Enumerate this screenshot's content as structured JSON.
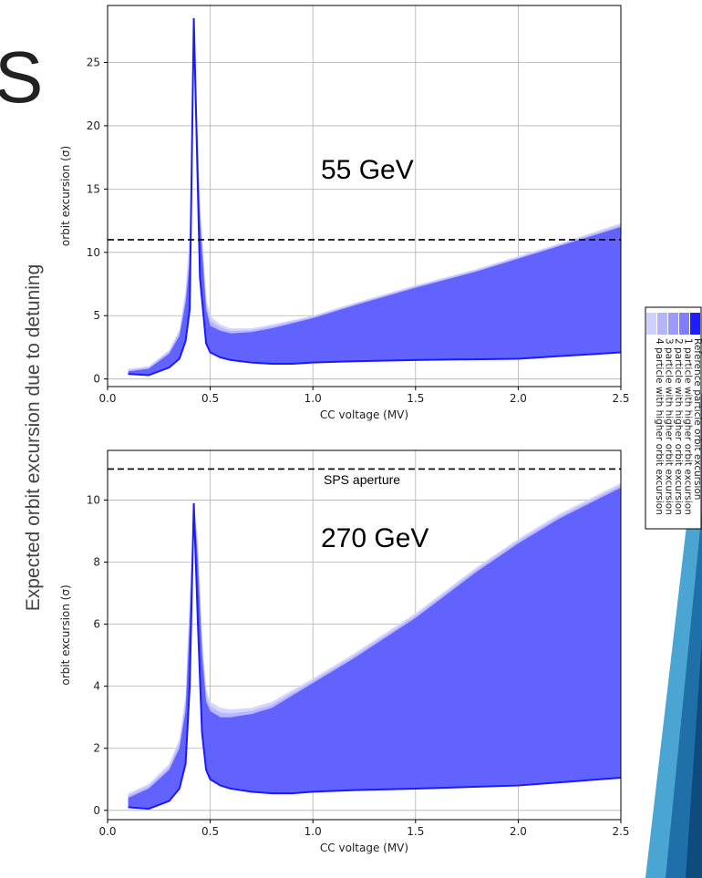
{
  "slide": {
    "title_fragment": "S",
    "side_label": "Expected orbit excursion due to detuning",
    "accent_colors": [
      "#1f6fa8",
      "#4aa5d2",
      "#7cc3e6",
      "#0f4c7e"
    ]
  },
  "legend": {
    "entries": [
      "Reference particle orbit excursion",
      "1 particle with higher orbit excursion",
      "2 particle with higher orbit excursion",
      "3 particle with higher orbit excursion",
      "4 particle with higher orbit excursion"
    ],
    "colors": [
      "#d0d0ff",
      "#b4b4ff",
      "#9a9aff",
      "#7e7eff",
      "#1d1dff"
    ]
  },
  "chart_data": [
    {
      "type": "area",
      "annotation": "55 GeV",
      "xlabel": "CC voltage (MV)",
      "ylabel": "orbit excursion (σ)",
      "xlim": [
        0.0,
        2.5
      ],
      "ylim": [
        -0.6,
        29.5
      ],
      "xticks": [
        "0.0",
        "0.5",
        "1.0",
        "1.5",
        "2.0",
        "2.5"
      ],
      "xtick_values": [
        0.0,
        0.5,
        1.0,
        1.5,
        2.0,
        2.5
      ],
      "yticks": [
        "0",
        "5",
        "10",
        "15",
        "20",
        "25"
      ],
      "ytick_values": [
        0,
        5,
        10,
        15,
        20,
        25
      ],
      "grid": true,
      "aperture_level": 11.0,
      "aperture_label": "",
      "series": [
        {
          "role": "upper envelope",
          "x": [
            0.1,
            0.2,
            0.3,
            0.35,
            0.38,
            0.4,
            0.42,
            0.45,
            0.48,
            0.5,
            0.55,
            0.6,
            0.7,
            0.8,
            1.0,
            1.2,
            1.5,
            1.8,
            2.0,
            2.2,
            2.5
          ],
          "values": [
            0.6,
            0.8,
            2.0,
            3.4,
            6.0,
            9.2,
            28.5,
            12.5,
            5.5,
            4.2,
            3.8,
            3.6,
            3.7,
            4.0,
            4.8,
            5.8,
            7.2,
            8.5,
            9.5,
            10.5,
            12.0
          ]
        },
        {
          "role": "reference particle",
          "x": [
            0.1,
            0.2,
            0.3,
            0.35,
            0.38,
            0.4,
            0.42,
            0.45,
            0.48,
            0.5,
            0.55,
            0.6,
            0.7,
            0.8,
            0.9,
            1.0,
            1.2,
            1.5,
            2.0,
            2.2,
            2.5
          ],
          "values": [
            0.4,
            0.3,
            0.9,
            1.6,
            3.0,
            5.5,
            28.5,
            8.0,
            2.8,
            2.1,
            1.7,
            1.5,
            1.3,
            1.2,
            1.2,
            1.3,
            1.4,
            1.5,
            1.6,
            1.8,
            2.1
          ]
        }
      ],
      "halo": {
        "x": [
          0.1,
          0.2,
          0.3,
          0.35,
          0.38,
          0.4,
          0.42,
          0.45,
          0.48,
          0.5,
          0.55,
          0.6,
          0.7,
          0.8,
          1.0,
          1.2,
          1.5,
          1.8,
          2.0,
          2.2,
          2.5
        ],
        "values": [
          0.8,
          1.0,
          2.3,
          3.9,
          7.0,
          11.5,
          28.5,
          14.0,
          6.5,
          5.0,
          4.3,
          4.0,
          4.0,
          4.3,
          5.0,
          6.0,
          7.4,
          8.7,
          9.7,
          10.7,
          12.3
        ]
      }
    },
    {
      "type": "area",
      "annotation": "270 GeV",
      "xlabel": "CC voltage (MV)",
      "ylabel": "orbit excursion (σ)",
      "xlim": [
        0.0,
        2.5
      ],
      "ylim": [
        -0.3,
        11.6
      ],
      "xticks": [
        "0.0",
        "0.5",
        "1.0",
        "1.5",
        "2.0",
        "2.5"
      ],
      "xtick_values": [
        0.0,
        0.5,
        1.0,
        1.5,
        2.0,
        2.5
      ],
      "yticks": [
        "0",
        "2",
        "4",
        "6",
        "8",
        "10"
      ],
      "ytick_values": [
        0,
        2,
        4,
        6,
        8,
        10
      ],
      "grid": true,
      "aperture_level": 11.0,
      "aperture_label": "SPS aperture",
      "series": [
        {
          "role": "upper envelope",
          "x": [
            0.1,
            0.2,
            0.3,
            0.35,
            0.38,
            0.4,
            0.42,
            0.44,
            0.46,
            0.48,
            0.5,
            0.55,
            0.6,
            0.7,
            0.8,
            1.0,
            1.2,
            1.5,
            1.8,
            2.0,
            2.2,
            2.5
          ],
          "values": [
            0.4,
            0.7,
            1.3,
            2.0,
            3.2,
            6.0,
            9.9,
            8.0,
            5.0,
            3.5,
            3.2,
            3.0,
            3.0,
            3.1,
            3.3,
            4.1,
            4.9,
            6.2,
            7.7,
            8.6,
            9.4,
            10.4
          ]
        },
        {
          "role": "reference particle",
          "x": [
            0.1,
            0.2,
            0.3,
            0.35,
            0.38,
            0.4,
            0.42,
            0.44,
            0.46,
            0.48,
            0.5,
            0.55,
            0.6,
            0.7,
            0.8,
            0.9,
            1.0,
            1.2,
            1.5,
            2.0,
            2.2,
            2.5
          ],
          "values": [
            0.1,
            0.05,
            0.3,
            0.7,
            1.5,
            4.0,
            9.9,
            6.0,
            2.5,
            1.3,
            1.0,
            0.8,
            0.7,
            0.6,
            0.55,
            0.55,
            0.6,
            0.65,
            0.7,
            0.8,
            0.9,
            1.05
          ]
        }
      ],
      "halo": {
        "x": [
          0.1,
          0.2,
          0.3,
          0.35,
          0.38,
          0.4,
          0.42,
          0.44,
          0.46,
          0.48,
          0.5,
          0.55,
          0.6,
          0.7,
          0.8,
          1.0,
          1.2,
          1.5,
          1.8,
          2.0,
          2.2,
          2.5
        ],
        "values": [
          0.55,
          0.85,
          1.5,
          2.3,
          3.7,
          7.0,
          9.9,
          8.7,
          5.7,
          3.9,
          3.5,
          3.3,
          3.25,
          3.3,
          3.5,
          4.25,
          5.05,
          6.35,
          7.85,
          8.75,
          9.55,
          10.55
        ]
      }
    }
  ]
}
